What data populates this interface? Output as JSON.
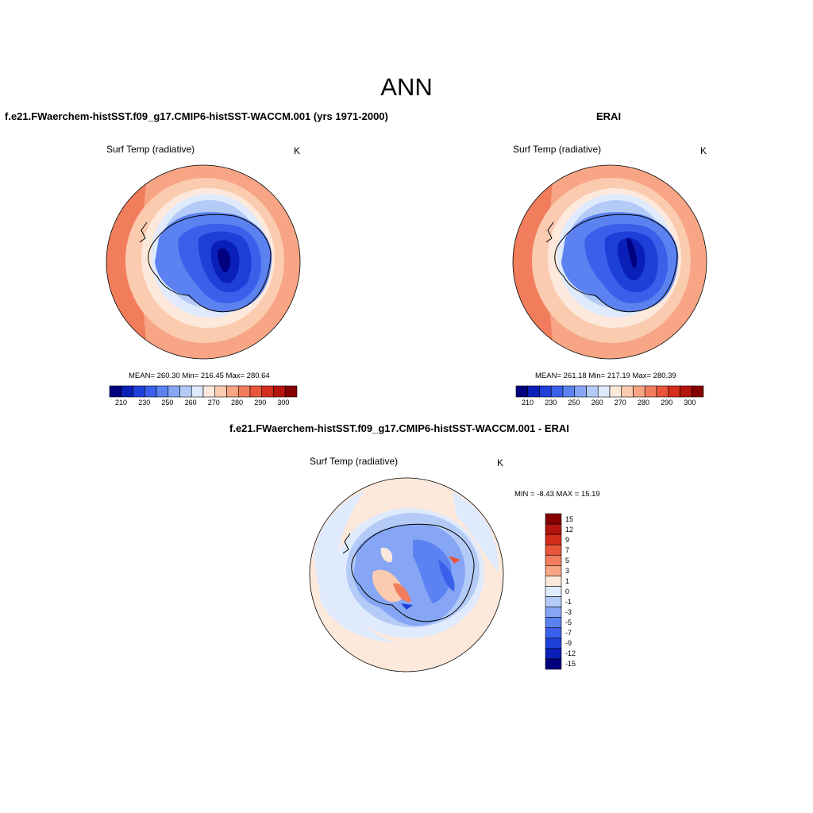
{
  "title": "ANN",
  "panels": {
    "model": {
      "title": "f.e21.FWaerchem-histSST.f09_g17.CMIP6-histSST-WACCM.001 (yrs 1971-2000)",
      "variable": "Surf Temp (radiative)",
      "units": "K",
      "stats": "MEAN= 260.30  Min= 216.45  Max= 280.64"
    },
    "obs": {
      "title": "ERAI",
      "variable": "Surf Temp (radiative)",
      "units": "K",
      "stats": "MEAN= 261.18  Min= 217.19  Max= 280.39"
    },
    "diff": {
      "title": "f.e21.FWaerchem-histSST.f09_g17.CMIP6-histSST-WACCM.001 - ERAI",
      "variable": "Surf Temp (radiative)",
      "units": "K",
      "stats": "MIN =  -8.43 MAX =  15.19"
    }
  },
  "abs_colorbar": {
    "colors": [
      "#00007f",
      "#0a1fb8",
      "#1f3fd9",
      "#3a60eb",
      "#5b82f0",
      "#86a6f5",
      "#b4cbf8",
      "#dfeafd",
      "#fde9db",
      "#fbcbb0",
      "#f7a585",
      "#f27d5c",
      "#e9553a",
      "#d52d1b",
      "#b3140c",
      "#860000"
    ],
    "tick_labels": [
      "210",
      "230",
      "250",
      "260",
      "270",
      "280",
      "290",
      "300"
    ]
  },
  "diff_colorbar": {
    "colors": [
      "#860000",
      "#b3140c",
      "#d52d1b",
      "#e9553a",
      "#f27d5c",
      "#f7a585",
      "#fde9db",
      "#dfeafd",
      "#b4cbf8",
      "#86a6f5",
      "#5b82f0",
      "#3a60eb",
      "#1f3fd9",
      "#0a1fb8",
      "#00007f"
    ],
    "tick_labels": [
      "15",
      "12",
      "9",
      "7",
      "5",
      "3",
      "1",
      "0",
      "-1",
      "-3",
      "-5",
      "-7",
      "-9",
      "-12",
      "-15"
    ]
  }
}
